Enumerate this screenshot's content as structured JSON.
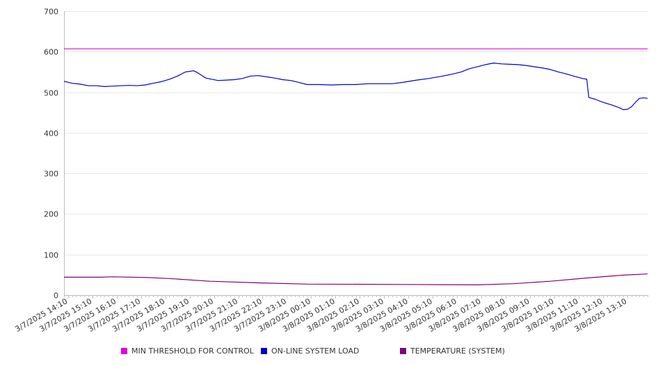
{
  "chart_data": {
    "type": "line",
    "title": "",
    "xlabel": "",
    "ylabel": "",
    "ylim": [
      0,
      700
    ],
    "yticks": [
      0,
      100,
      200,
      300,
      400,
      500,
      600,
      700
    ],
    "grid": true,
    "legend_position": "bottom",
    "x_start": "3/7/2025 14:00",
    "x_end": "3/8/2025 14:00",
    "x_tick_labels": [
      "3/7/2025 14:10",
      "3/7/2025 15:10",
      "3/7/2025 16:10",
      "3/7/2025 17:10",
      "3/7/2025 18:10",
      "3/7/2025 19:10",
      "3/7/2025 20:10",
      "3/7/2025 21:10",
      "3/7/2025 22:10",
      "3/7/2025 23:10",
      "3/8/2025 00:10",
      "3/8/2025 01:10",
      "3/8/2025 02:10",
      "3/8/2025 03:10",
      "3/8/2025 04:10",
      "3/8/2025 05:10",
      "3/8/2025 06:10",
      "3/8/2025 07:10",
      "3/8/2025 08:10",
      "3/8/2025 09:10",
      "3/8/2025 10:10",
      "3/8/2025 11:10",
      "3/8/2025 12:10",
      "3/8/2025 13:10"
    ],
    "series": [
      {
        "name": "MIN THRESHOLD FOR CONTROL",
        "color": "#e000e0",
        "points": [
          [
            "3/7/2025 14:00",
            607
          ],
          [
            "3/8/2025 14:00",
            607
          ]
        ]
      },
      {
        "name": "ON-LINE SYSTEM LOAD",
        "color": "#0000cc",
        "points": [
          [
            "3/7/2025 14:00",
            527
          ],
          [
            "3/7/2025 14:20",
            522
          ],
          [
            "3/7/2025 14:40",
            520
          ],
          [
            "3/7/2025 15:00",
            516
          ],
          [
            "3/7/2025 15:20",
            516
          ],
          [
            "3/7/2025 15:40",
            514
          ],
          [
            "3/7/2025 16:00",
            515
          ],
          [
            "3/7/2025 16:20",
            516
          ],
          [
            "3/7/2025 16:40",
            517
          ],
          [
            "3/7/2025 17:00",
            516
          ],
          [
            "3/7/2025 17:20",
            518
          ],
          [
            "3/7/2025 17:40",
            522
          ],
          [
            "3/7/2025 18:00",
            526
          ],
          [
            "3/7/2025 18:20",
            532
          ],
          [
            "3/7/2025 18:40",
            540
          ],
          [
            "3/7/2025 19:00",
            550
          ],
          [
            "3/7/2025 19:20",
            553
          ],
          [
            "3/7/2025 19:30",
            548
          ],
          [
            "3/7/2025 19:50",
            535
          ],
          [
            "3/7/2025 20:20",
            529
          ],
          [
            "3/7/2025 20:40",
            530
          ],
          [
            "3/7/2025 21:00",
            531
          ],
          [
            "3/7/2025 21:20",
            534
          ],
          [
            "3/7/2025 21:40",
            540
          ],
          [
            "3/7/2025 22:00",
            541
          ],
          [
            "3/7/2025 22:20",
            538
          ],
          [
            "3/7/2025 22:40",
            535
          ],
          [
            "3/7/2025 23:00",
            531
          ],
          [
            "3/7/2025 23:20",
            529
          ],
          [
            "3/7/2025 23:40",
            524
          ],
          [
            "3/8/2025 00:00",
            519
          ],
          [
            "3/8/2025 00:30",
            519
          ],
          [
            "3/8/2025 01:00",
            518
          ],
          [
            "3/8/2025 01:30",
            519
          ],
          [
            "3/8/2025 02:00",
            519
          ],
          [
            "3/8/2025 02:30",
            521
          ],
          [
            "3/8/2025 03:00",
            521
          ],
          [
            "3/8/2025 03:30",
            521
          ],
          [
            "3/8/2025 04:00",
            525
          ],
          [
            "3/8/2025 04:30",
            530
          ],
          [
            "3/8/2025 05:00",
            534
          ],
          [
            "3/8/2025 05:30",
            539
          ],
          [
            "3/8/2025 06:00",
            545
          ],
          [
            "3/8/2025 06:20",
            550
          ],
          [
            "3/8/2025 06:40",
            558
          ],
          [
            "3/8/2025 07:00",
            563
          ],
          [
            "3/8/2025 07:20",
            568
          ],
          [
            "3/8/2025 07:40",
            572
          ],
          [
            "3/8/2025 08:00",
            570
          ],
          [
            "3/8/2025 08:20",
            569
          ],
          [
            "3/8/2025 08:40",
            568
          ],
          [
            "3/8/2025 09:00",
            566
          ],
          [
            "3/8/2025 09:20",
            563
          ],
          [
            "3/8/2025 09:40",
            560
          ],
          [
            "3/8/2025 10:00",
            556
          ],
          [
            "3/8/2025 10:20",
            550
          ],
          [
            "3/8/2025 10:40",
            545
          ],
          [
            "3/8/2025 11:00",
            539
          ],
          [
            "3/8/2025 11:20",
            534
          ],
          [
            "3/8/2025 11:30",
            532
          ],
          [
            "3/8/2025 11:35",
            487
          ],
          [
            "3/8/2025 11:50",
            483
          ],
          [
            "3/8/2025 12:10",
            475
          ],
          [
            "3/8/2025 12:30",
            469
          ],
          [
            "3/8/2025 12:50",
            462
          ],
          [
            "3/8/2025 13:00",
            457
          ],
          [
            "3/8/2025 13:10",
            458
          ],
          [
            "3/8/2025 13:20",
            464
          ],
          [
            "3/8/2025 13:30",
            475
          ],
          [
            "3/8/2025 13:40",
            485
          ],
          [
            "3/8/2025 13:50",
            486
          ],
          [
            "3/8/2025 14:00",
            485
          ]
        ]
      },
      {
        "name": "TEMPERATURE (SYSTEM)",
        "color": "#800080",
        "points": [
          [
            "3/7/2025 14:00",
            44
          ],
          [
            "3/7/2025 15:30",
            44
          ],
          [
            "3/7/2025 16:00",
            45
          ],
          [
            "3/7/2025 17:30",
            43
          ],
          [
            "3/7/2025 18:30",
            40
          ],
          [
            "3/7/2025 20:00",
            34
          ],
          [
            "3/7/2025 22:00",
            30
          ],
          [
            "3/8/2025 00:00",
            27
          ],
          [
            "3/8/2025 04:00",
            26
          ],
          [
            "3/8/2025 07:00",
            25
          ],
          [
            "3/8/2025 08:30",
            28
          ],
          [
            "3/8/2025 10:00",
            34
          ],
          [
            "3/8/2025 11:30",
            42
          ],
          [
            "3/8/2025 13:00",
            49
          ],
          [
            "3/8/2025 14:00",
            52
          ]
        ]
      }
    ]
  }
}
